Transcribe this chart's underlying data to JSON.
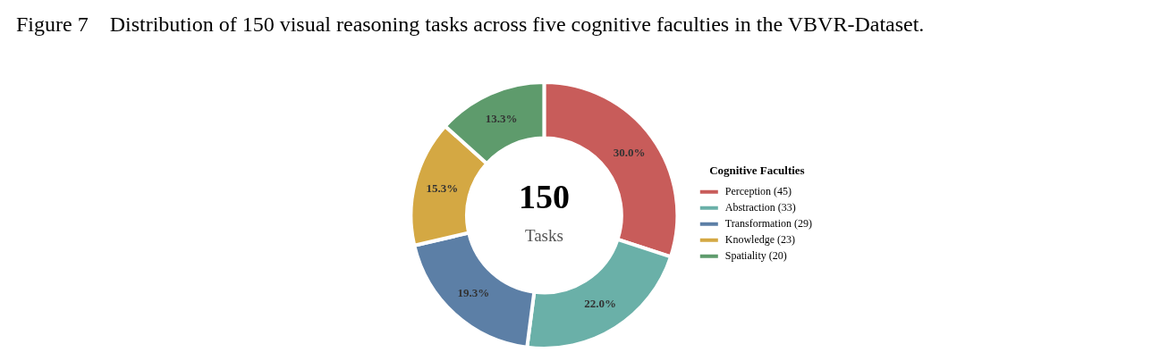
{
  "chart_data": {
    "type": "donut",
    "title": "Figure 7    Distribution of 150 visual reasoning tasks across five cognitive faculties in the VBVR-Dataset.",
    "legend_title": "Cognitive Faculties",
    "legend": "right",
    "categories": [
      "Perception (45)",
      "Abstraction (33)",
      "Transformation (29)",
      "Knowledge (23)",
      "Spatiality (20)"
    ],
    "values": [
      30.0,
      22.0,
      19.3,
      15.3,
      13.3
    ],
    "value_labels": [
      "30.0%",
      "22.0%",
      "19.3%",
      "15.3%",
      "13.3%"
    ],
    "colors": [
      "#c85c5a",
      "#6ab0a8",
      "#5c7fa6",
      "#d4a843",
      "#5e9b6c"
    ],
    "annotations": [
      "150",
      "Tasks"
    ]
  }
}
